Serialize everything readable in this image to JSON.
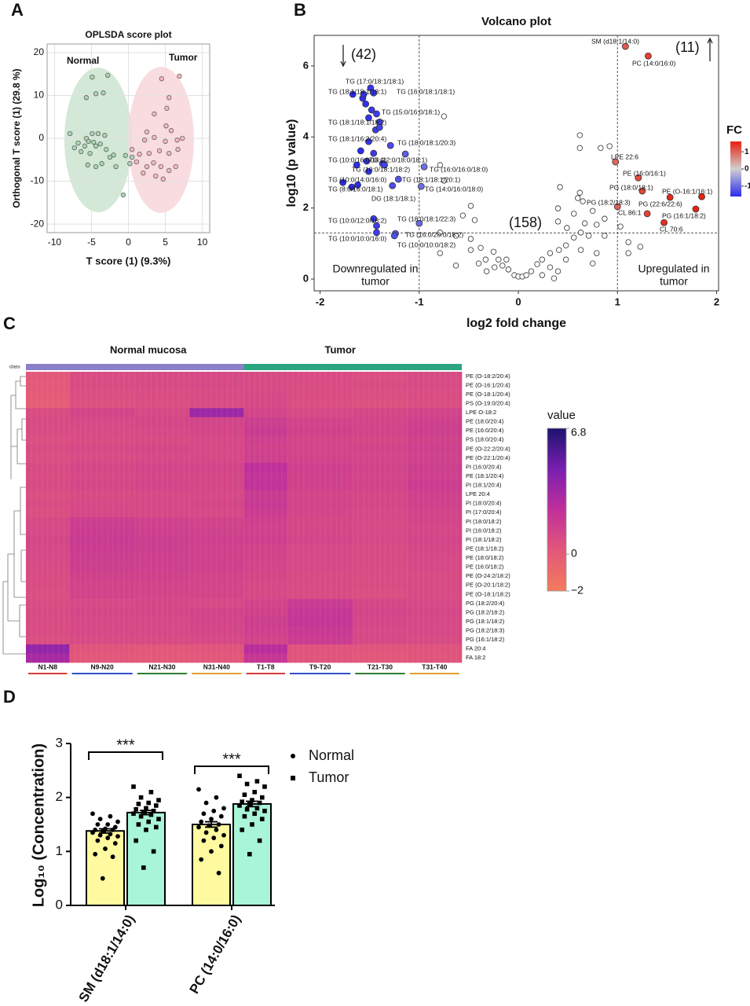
{
  "chart_data": [
    {
      "panel": "A",
      "type": "scatter",
      "title": "OPLSDA score plot",
      "xlabel": "T score (1) (9.3%)",
      "ylabel": "Orthogonal T score (1) (29.8 %)",
      "xlim": [
        -11,
        11
      ],
      "ylim": [
        -22,
        22
      ],
      "xticks": [
        -10,
        -5,
        0,
        5,
        10
      ],
      "yticks": [
        -20,
        -10,
        0,
        10,
        20
      ],
      "grid": true,
      "series": [
        {
          "name": "Normal",
          "color": "#a8d5b0",
          "x": [
            -4.9,
            -3.4,
            -4.4,
            -2.8,
            -5.7,
            -7.9,
            -7.3,
            -6.8,
            -5.9,
            -5.4,
            -4.9,
            -4.4,
            -4.1,
            -3.8,
            -3.2,
            -5.2,
            -5.5,
            -4.4,
            -3.6,
            -2.5,
            -1.7,
            -2.0,
            -0.7,
            0.2,
            0.5,
            -0.4,
            -5.7,
            -6.4,
            -4.7,
            -3.0
          ],
          "y": [
            14.3,
            10.6,
            10.4,
            14.7,
            9.5,
            1.1,
            -2.2,
            -1.1,
            -1.8,
            -0.7,
            1.1,
            -1.8,
            1.1,
            -1.3,
            0.7,
            -3.5,
            -6.2,
            -6.6,
            -5.9,
            -4.4,
            -6.6,
            -3.9,
            -13.2,
            -5.9,
            -4.4,
            -4.0,
            0,
            -3.1,
            -0.9,
            -2.6
          ]
        },
        {
          "name": "Tumor",
          "color": "#f2b8bd",
          "x": [
            4.5,
            6.9,
            5.5,
            5.2,
            3.5,
            2.5,
            2.2,
            3.5,
            5.0,
            5.8,
            7.3,
            6.6,
            1.5,
            2.8,
            4.2,
            5.5,
            6.7,
            3.4,
            4.4,
            5.5,
            6.4,
            3.7,
            4.7,
            2.0,
            1.1,
            0.5,
            2.5,
            5.1
          ],
          "y": [
            13.9,
            14.5,
            9.5,
            7.0,
            5.7,
            1.5,
            -0.4,
            0.2,
            -0.7,
            1.8,
            0,
            -0.4,
            -3.7,
            -3.5,
            -2.9,
            -3.5,
            -2.6,
            -5.7,
            -6.6,
            -7.5,
            -6.6,
            -8.8,
            -9.5,
            -8.1,
            -5.5,
            -2.6,
            -6.6,
            2.9
          ]
        }
      ]
    },
    {
      "panel": "B",
      "type": "volcano",
      "title": "Volcano plot",
      "xlabel": "log2 fold change",
      "ylabel": "log10 (p value)",
      "xlim": [
        -2.06,
        2.02
      ],
      "ylim": [
        -0.33,
        6.86
      ],
      "xticks": [
        -2,
        -1,
        0,
        1,
        2
      ],
      "yticks": [
        0,
        2,
        4,
        6
      ],
      "vlines": [
        -1,
        1
      ],
      "hlines": [
        1.3
      ],
      "annotations": [
        "(42)",
        "(11)",
        "(158)"
      ],
      "region_labels": [
        [
          "Downregulated in",
          "tumor"
        ],
        [
          "Upregulated in",
          "tumor"
        ]
      ],
      "colorbar": {
        "title": "FC",
        "lim": [
          -1.6,
          1.6
        ],
        "ticks": [
          1,
          0,
          -1
        ],
        "colors": [
          "#2c2cf0",
          "#d0d0d0",
          "#e8200f"
        ]
      },
      "series": [
        {
          "fill_by": "FC",
          "x": [
            -1.49,
            -1.67,
            -1.46,
            -1.43,
            -1.4,
            -1.51,
            -1.29,
            -1.53,
            -1.37,
            -1.35,
            -0.95,
            -1.77,
            -1.21,
            -1.62,
            -0.98,
            -1.27,
            -1.43,
            -1.0,
            -1.24,
            -1.43,
            -1.25,
            1.08,
            1.31,
            0.98,
            1.21,
            1.25,
            1.85,
            1.0,
            1.53,
            1.3,
            1.79,
            1.47,
            -1.57,
            -1.54,
            -1.48,
            -1.44,
            -1.4,
            -1.59,
            -1.46,
            -1.63,
            -1.14,
            -1.51,
            -1.68,
            -1.46,
            -1.56,
            -1.51
          ],
          "y": [
            5.38,
            5.2,
            5.24,
            4.65,
            4.42,
            3.87,
            3.76,
            3.32,
            3.25,
            3.21,
            3.16,
            2.72,
            2.81,
            2.65,
            2.61,
            2.63,
            1.5,
            1.57,
            1.28,
            1.31,
            1.22,
            6.55,
            6.28,
            3.3,
            2.85,
            2.48,
            2.32,
            2.04,
            2.3,
            1.84,
            1.97,
            1.59,
            5.09,
            4.93,
            4.76,
            4.2,
            4.27,
            3.61,
            3.54,
            3.21,
            3.52,
            3.03,
            2.59,
            1.7,
            5.2,
            4.54
          ],
          "labels": [
            "TG (17:0/18:1/18:1)",
            "TG (18:1/18:1/18:1)",
            "TG (16:0/18:1/18:1)",
            "TG (15:0/16:0/18:1)",
            "TG (18:1/18:1/18:2)",
            "TG (18:1/16:2/20:4)",
            "TG (18:0/18:1/20:3)",
            "TG (10:0/16:0/18:1)",
            "TG (12:0/18:0/18:1)",
            "TG (10:0/18:1/18:2)",
            "TG (16:0/16:0/18:0)",
            "TG (10:0/14:0/16:0)",
            "TG (18:1/18:1/20:1)",
            "TG (8:0/16:0/18:1)",
            "TG (14:0/16:0/18:0)",
            "DG (18:1/18:1)",
            "TG (10:0/12:0/18:2)",
            "TG (18:0/18:1/22:3)",
            "TG (16:0/20:0/18:2)",
            "TG (10:0/10:0/16:0)",
            "TG (10:0/10:0/18:2)",
            "SM (d18:1/14:0)",
            "PC (14:0/16:0)",
            "LPE 22:6",
            "PE (16:0/16:1)",
            "PG (18:0/18:1)",
            "PE (O-16:1/16:1)",
            "PG (18:2/18:3)",
            "PG (22:6/22:6)",
            "CL 86:1",
            "PG (16:1/18:2)",
            "CL 70:6",
            null,
            null,
            null,
            null,
            null,
            null,
            null,
            null,
            null,
            null,
            null,
            null,
            null,
            null
          ]
        },
        {
          "color": "#ffffff",
          "x": [
            -0.75,
            0.62,
            0.62,
            0.83,
            0.92,
            -0.79,
            -0.75,
            0.42,
            0.62,
            0.6,
            0.4,
            0.65,
            0.75,
            0.56,
            0.4,
            0.49,
            0.67,
            0.79,
            0.87,
            -0.48,
            -0.56,
            -0.44,
            -0.79,
            -0.63,
            -0.48,
            -0.38,
            -0.25,
            -0.2,
            -0.16,
            -0.1,
            -0.04,
            0.0,
            0.04,
            0.08,
            0.13,
            0.19,
            0.24,
            0.32,
            0.41,
            0.48,
            0.56,
            0.63,
            0.71,
            0.87,
            1.11,
            1.23,
            0.63,
            0.79,
            0.32,
            0.4,
            0.24,
            -0.32,
            -0.4,
            -0.63,
            -0.79,
            -0.48,
            0.48,
            1.03,
            1.11,
            0.75,
            0.36,
            -0.12,
            -0.24,
            -0.33
          ],
          "y": [
            4.58,
            4.05,
            3.69,
            3.69,
            3.74,
            3.21,
            2.77,
            2.59,
            2.43,
            2.28,
            1.99,
            2.19,
            1.92,
            1.84,
            1.62,
            1.44,
            1.57,
            1.53,
            1.7,
            2.06,
            1.79,
            1.66,
            1.31,
            1.22,
            1.13,
            0.88,
            0.77,
            0.55,
            0.38,
            0.27,
            0.11,
            0.07,
            0.07,
            0.11,
            0.22,
            0.42,
            0.55,
            0.73,
            0.82,
            0.95,
            1.17,
            1.31,
            1.22,
            1.22,
            1.04,
            0.91,
            0.82,
            0.73,
            0.33,
            0.22,
            0.11,
            0.22,
            0.44,
            0.38,
            0.73,
            0.82,
            0.55,
            1.48,
            0.73,
            0.44,
            0.02,
            0.55,
            0.33,
            0.55
          ]
        }
      ]
    },
    {
      "panel": "C",
      "type": "heatmap",
      "class_label": "class",
      "classes": [
        {
          "name": "Normal mucosa",
          "size": 40,
          "color": "#8b80c9"
        },
        {
          "name": "Tumor",
          "size": 40,
          "color": "#2ba57f"
        }
      ],
      "column_groups": [
        {
          "label": "N1-N8",
          "size": 8,
          "color": "#d93a3a"
        },
        {
          "label": "N9-N20",
          "size": 12,
          "color": "#3050c8"
        },
        {
          "label": "N21-N30",
          "size": 10,
          "color": "#2e7d32"
        },
        {
          "label": "N31-N40",
          "size": 10,
          "color": "#e0a030"
        },
        {
          "label": "T1-T8",
          "size": 8,
          "color": "#d93a3a"
        },
        {
          "label": "T9-T20",
          "size": 12,
          "color": "#3050c8"
        },
        {
          "label": "T21-T30",
          "size": 10,
          "color": "#2e7d32"
        },
        {
          "label": "T31-T40",
          "size": 10,
          "color": "#e0a030"
        }
      ],
      "rows": [
        "PE (O-18:2/20:4)",
        "PE (O-16:1/20:4)",
        "PE (O-18:1/20:4)",
        "PS (O-19:0/20:4)",
        "LPE O-18:2",
        "PE (18:0/20:4)",
        "PE (16:0/20:4)",
        "PS (18:0/20:4)",
        "PE (O-22:2/20:4)",
        "PE (O-22:1/20:4)",
        "PI (16:0/20:4)",
        "PE (18:1/20:4)",
        "PI (18:1/20:4)",
        "LPE 20:4",
        "PI (18:0/20:4)",
        "PI (17:0/20:4)",
        "PI (18:0/18:2)",
        "PI (16:0/18:2)",
        "PI (18:1/18:2)",
        "PE (18:1/18:2)",
        "PE (18:0/18:2)",
        "PE (16:0/18:2)",
        "PE (O-24:2/18:2)",
        "PE (O-20:1/18:2)",
        "PE (O-18:1/18:2)",
        "PG (18:2/20:4)",
        "PG (18:2/18:2)",
        "PG (18:1/18:2)",
        "PG (18:2/18:3)",
        "PG (16:1/18:2)",
        "FA 20:4",
        "FA 18:2"
      ],
      "values": [
        [
          0.2,
          0.8,
          0.9,
          1.0,
          0.9,
          0.8,
          0.7,
          0.9
        ],
        [
          0.1,
          0.8,
          0.9,
          1.0,
          0.9,
          0.8,
          0.8,
          0.9
        ],
        [
          0.0,
          0.7,
          0.8,
          0.9,
          1.0,
          0.8,
          0.7,
          0.8
        ],
        [
          -0.2,
          0.6,
          0.7,
          0.8,
          1.0,
          0.7,
          0.6,
          0.7
        ],
        [
          0.8,
          1.2,
          1.0,
          3.5,
          1.2,
          1.0,
          1.1,
          1.3
        ],
        [
          0.9,
          1.0,
          1.1,
          1.2,
          1.6,
          1.3,
          1.2,
          1.5
        ],
        [
          0.8,
          0.9,
          1.0,
          1.1,
          1.8,
          1.4,
          1.3,
          1.6
        ],
        [
          0.7,
          0.8,
          0.9,
          1.0,
          1.5,
          1.2,
          1.1,
          1.4
        ],
        [
          0.8,
          1.0,
          1.1,
          1.0,
          1.4,
          1.2,
          1.3,
          1.5
        ],
        [
          0.7,
          0.9,
          1.0,
          1.0,
          1.5,
          1.3,
          1.2,
          1.4
        ],
        [
          0.9,
          1.1,
          1.2,
          1.2,
          2.4,
          1.5,
          1.3,
          1.6
        ],
        [
          0.8,
          1.0,
          1.1,
          1.1,
          2.2,
          1.4,
          1.2,
          1.5
        ],
        [
          0.9,
          1.1,
          1.2,
          1.1,
          2.3,
          1.4,
          1.3,
          1.7
        ],
        [
          0.7,
          0.9,
          1.0,
          1.0,
          1.8,
          1.2,
          1.1,
          1.5
        ],
        [
          0.8,
          1.0,
          1.0,
          1.1,
          1.9,
          1.3,
          1.1,
          1.4
        ],
        [
          0.7,
          1.0,
          1.0,
          1.0,
          1.7,
          1.2,
          1.0,
          1.3
        ],
        [
          1.0,
          1.6,
          1.4,
          1.3,
          1.5,
          1.1,
          1.0,
          1.2
        ],
        [
          1.0,
          1.7,
          1.5,
          1.4,
          1.4,
          1.1,
          1.0,
          1.1
        ],
        [
          1.1,
          1.8,
          1.6,
          1.5,
          1.5,
          1.2,
          1.0,
          1.2
        ],
        [
          1.0,
          1.7,
          1.6,
          1.4,
          1.3,
          1.0,
          0.9,
          1.1
        ],
        [
          1.0,
          1.6,
          1.5,
          1.4,
          1.3,
          1.0,
          0.9,
          1.0
        ],
        [
          0.9,
          1.6,
          1.5,
          1.5,
          1.2,
          1.0,
          0.9,
          1.0
        ],
        [
          0.8,
          1.4,
          1.4,
          1.3,
          1.1,
          0.9,
          0.8,
          0.9
        ],
        [
          0.8,
          1.3,
          1.3,
          1.2,
          1.0,
          0.9,
          0.8,
          0.9
        ],
        [
          0.7,
          1.3,
          1.2,
          1.2,
          1.0,
          0.8,
          0.7,
          0.9
        ],
        [
          0.8,
          1.0,
          1.1,
          1.0,
          1.3,
          1.8,
          1.1,
          1.0
        ],
        [
          0.9,
          1.1,
          1.1,
          1.3,
          1.4,
          2.0,
          1.2,
          1.1
        ],
        [
          0.8,
          1.0,
          1.0,
          1.2,
          1.6,
          2.1,
          1.1,
          1.0
        ],
        [
          0.8,
          1.0,
          1.0,
          1.1,
          1.5,
          1.9,
          1.0,
          1.0
        ],
        [
          0.7,
          0.9,
          0.9,
          1.0,
          1.3,
          1.7,
          1.0,
          0.9
        ],
        [
          3.8,
          0.3,
          0.2,
          0.3,
          2.6,
          0.4,
          0.3,
          0.4
        ],
        [
          3.2,
          0.2,
          0.1,
          0.2,
          2.0,
          0.3,
          0.2,
          0.3
        ]
      ],
      "colorbar": {
        "title": "value",
        "lim": [
          -2,
          6.8
        ],
        "ticks": [
          6.8,
          0,
          {
            "value": -2,
            "label": "−2"
          }
        ],
        "colors": [
          "#f47c5c",
          "#e2577a",
          "#c0309a",
          "#7a1fb0",
          "#1c136e"
        ]
      }
    },
    {
      "panel": "D",
      "type": "bar",
      "ylabel": "Log₁₀ (Concentration)",
      "categories": [
        "SM (d18:1/14:0)",
        "PC (14:0/16:0)"
      ],
      "ylim": [
        0,
        3
      ],
      "yticks": [
        0,
        1,
        2,
        3
      ],
      "significance": [
        "***",
        "***"
      ],
      "series": [
        {
          "name": "Normal",
          "color": "#fffaa0",
          "marker": "circle",
          "values": [
            1.38,
            1.5
          ],
          "errors": [
            0.04,
            0.05
          ],
          "points": [
            [
              1.7,
              1.65,
              1.6,
              1.55,
              1.5,
              1.5,
              1.45,
              1.42,
              1.4,
              1.4,
              1.38,
              1.35,
              1.32,
              1.3,
              1.28,
              1.25,
              1.2,
              1.15,
              1.05,
              0.95,
              0.9,
              0.5
            ],
            [
              2.15,
              2.0,
              1.9,
              1.8,
              1.75,
              1.7,
              1.65,
              1.6,
              1.55,
              1.5,
              1.48,
              1.45,
              1.4,
              1.35,
              1.3,
              1.25,
              1.2,
              1.1,
              1.0,
              0.85,
              0.6
            ]
          ]
        },
        {
          "name": "Tumor",
          "color": "#a8f5d8",
          "marker": "square",
          "values": [
            1.72,
            1.88
          ],
          "errors": [
            0.04,
            0.05
          ],
          "points": [
            [
              2.2,
              2.1,
              2.0,
              1.95,
              1.9,
              1.88,
              1.85,
              1.8,
              1.78,
              1.75,
              1.72,
              1.7,
              1.68,
              1.65,
              1.6,
              1.55,
              1.5,
              1.45,
              1.4,
              1.2,
              1.0,
              0.7
            ],
            [
              2.4,
              2.3,
              2.25,
              2.2,
              2.1,
              2.05,
              2.0,
              1.95,
              1.92,
              1.9,
              1.88,
              1.85,
              1.8,
              1.78,
              1.75,
              1.7,
              1.65,
              1.6,
              1.5,
              1.4,
              1.2,
              0.95
            ]
          ]
        }
      ]
    }
  ]
}
